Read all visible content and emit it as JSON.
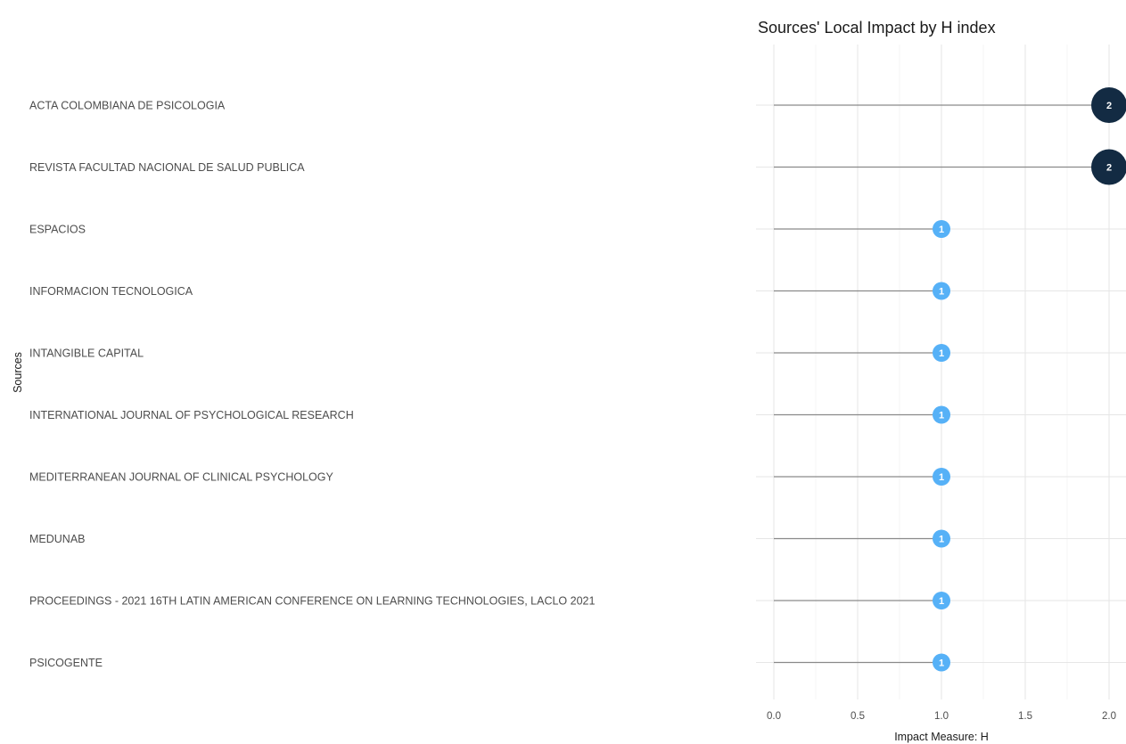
{
  "chart_data": {
    "type": "lollipop",
    "title": "Sources' Local Impact by H index",
    "xlabel": "Impact Measure: H",
    "ylabel": "Sources",
    "xlim": [
      0,
      2
    ],
    "xticks": [
      "0.0",
      "0.5",
      "1.0",
      "1.5",
      "2.0"
    ],
    "grid": true,
    "legend": "none",
    "categories": [
      "ACTA COLOMBIANA DE PSICOLOGIA",
      "REVISTA FACULTAD NACIONAL DE SALUD PUBLICA",
      "ESPACIOS",
      "INFORMACION TECNOLOGICA",
      "INTANGIBLE CAPITAL",
      "INTERNATIONAL JOURNAL OF PSYCHOLOGICAL RESEARCH",
      "MEDITERRANEAN JOURNAL OF CLINICAL PSYCHOLOGY",
      "MEDUNAB",
      "PROCEEDINGS - 2021 16TH LATIN AMERICAN CONFERENCE ON LEARNING TECHNOLOGIES, LACLO 2021",
      "PSICOGENTE"
    ],
    "values": [
      2,
      2,
      1,
      1,
      1,
      1,
      1,
      1,
      1,
      1
    ],
    "point_labels": [
      "2",
      "2",
      "1",
      "1",
      "1",
      "1",
      "1",
      "1",
      "1",
      "1"
    ],
    "colors": {
      "low": "#56b1f7",
      "high": "#132b43",
      "stem": "#8a8a8a",
      "grid": "#e6e6e6",
      "label_text": "#ffffff"
    }
  }
}
